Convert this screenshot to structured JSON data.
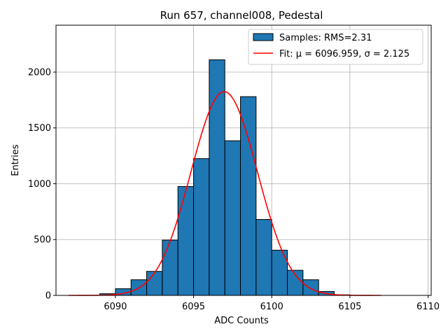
{
  "chart_data": {
    "type": "bar",
    "title": "Run 657, channel008, Pedestal",
    "xlabel": "ADC Counts",
    "ylabel": "Entries",
    "xlim": [
      6086.2,
      6110.2
    ],
    "ylim": [
      0,
      2420
    ],
    "xticks": [
      6090,
      6095,
      6100,
      6105,
      6110
    ],
    "yticks": [
      0,
      500,
      1000,
      1500,
      2000
    ],
    "grid": true,
    "bin_width": 1,
    "bins": [
      {
        "left": 6089,
        "value": 15
      },
      {
        "left": 6090,
        "value": 60
      },
      {
        "left": 6091,
        "value": 140
      },
      {
        "left": 6092,
        "value": 215
      },
      {
        "left": 6093,
        "value": 495
      },
      {
        "left": 6094,
        "value": 975
      },
      {
        "left": 6095,
        "value": 1225
      },
      {
        "left": 6096,
        "value": 2110
      },
      {
        "left": 6097,
        "value": 1385
      },
      {
        "left": 6098,
        "value": 1780
      },
      {
        "left": 6099,
        "value": 680
      },
      {
        "left": 6100,
        "value": 405
      },
      {
        "left": 6101,
        "value": 225
      },
      {
        "left": 6102,
        "value": 140
      },
      {
        "left": 6103,
        "value": 35
      },
      {
        "left": 6104,
        "value": 5
      }
    ],
    "fit": {
      "mu": 6096.959,
      "sigma": 2.125,
      "amplitude": 1825,
      "x_range": [
        6087,
        6107
      ]
    },
    "legend": {
      "position": "top-right",
      "entries": [
        {
          "kind": "bar",
          "label": "Samples: RMS=2.31"
        },
        {
          "kind": "line",
          "label": "Fit: μ = 6096.959, σ = 2.125"
        }
      ]
    },
    "colors": {
      "bar_fill": "#1f77b4",
      "bar_edge": "#000000",
      "fit_line": "#ff0000",
      "grid": "#b0b0b0"
    }
  }
}
